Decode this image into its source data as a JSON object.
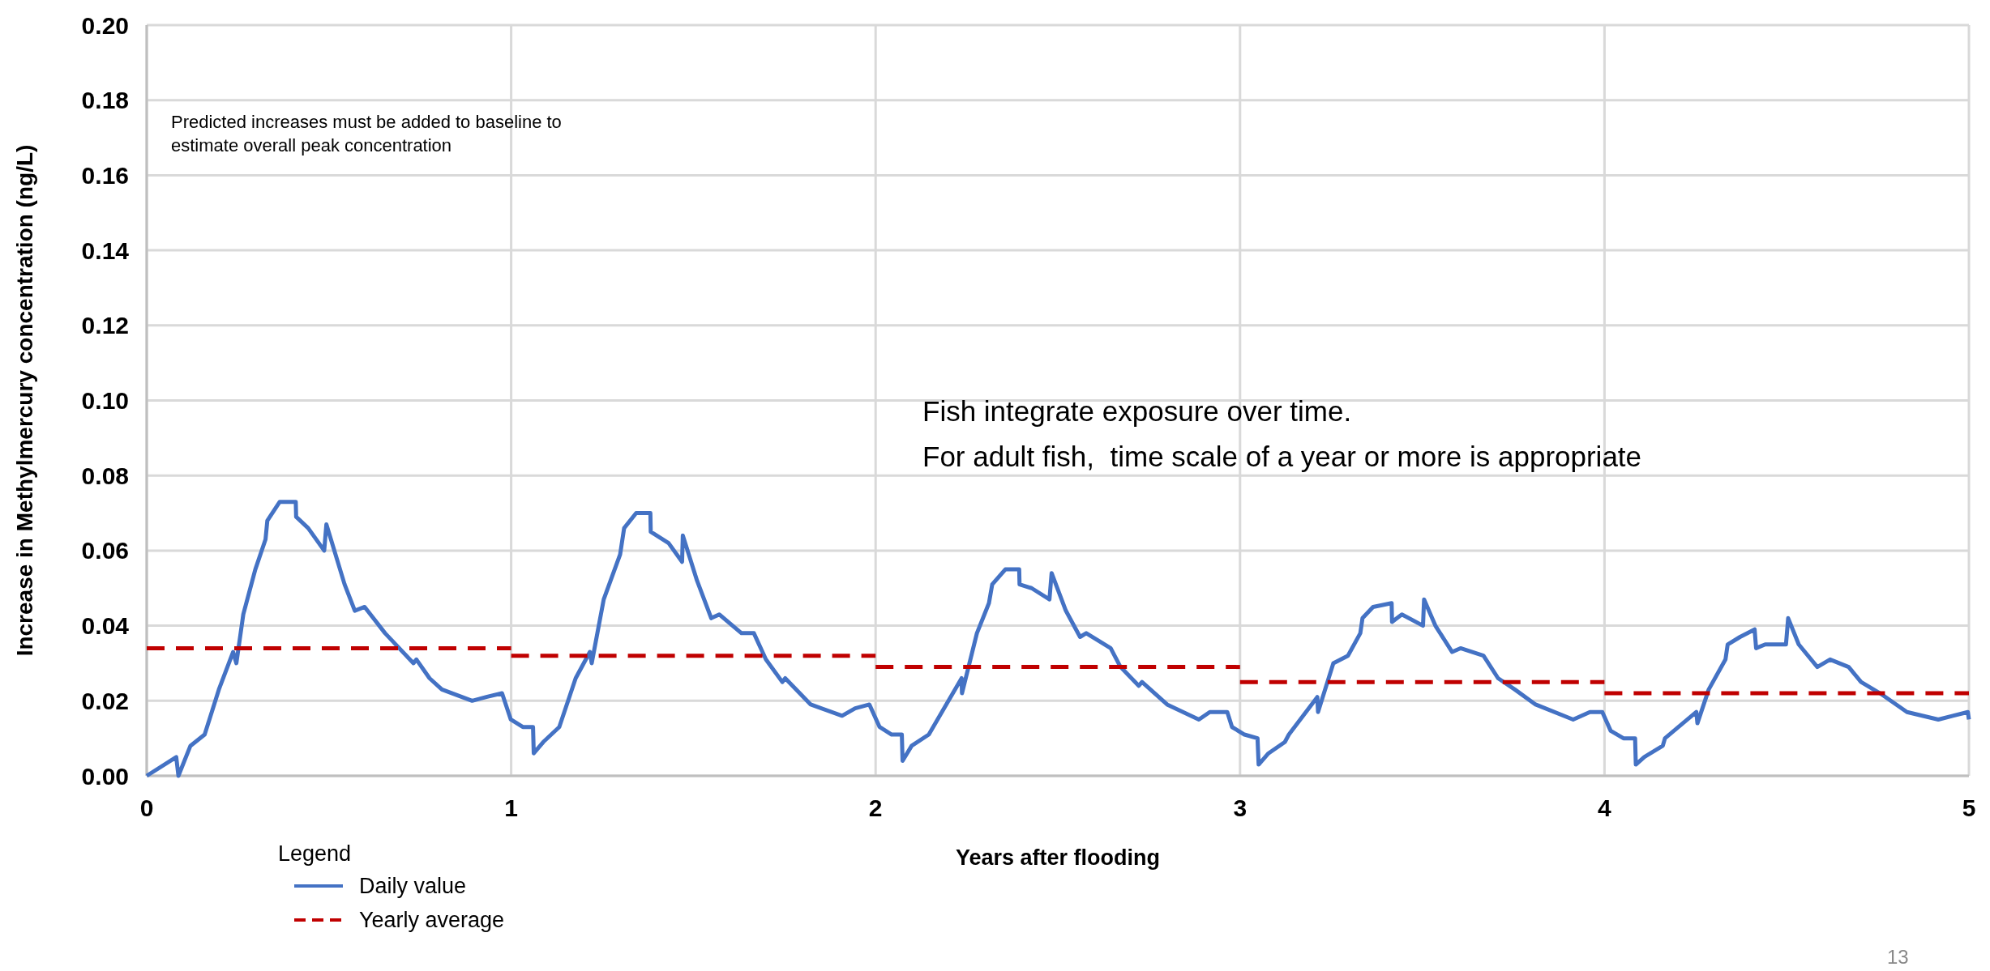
{
  "chart_data": {
    "type": "line",
    "xlabel": "Years after flooding",
    "ylabel": "Increase in Methylmercury concentration (ng/L)",
    "xlim": [
      0,
      5
    ],
    "ylim": [
      0,
      0.2
    ],
    "xticks": [
      0,
      1,
      2,
      3,
      4,
      5
    ],
    "yticks": [
      {
        "value": 0,
        "label": "0.00"
      },
      {
        "value": 0.02,
        "label": "0.02"
      },
      {
        "value": 0.04,
        "label": "0.04"
      },
      {
        "value": 0.06,
        "label": "0.06"
      },
      {
        "value": 0.08,
        "label": "0.08"
      },
      {
        "value": 0.1,
        "label": "0.10"
      },
      {
        "value": 0.12,
        "label": "0.12"
      },
      {
        "value": 0.14,
        "label": "0.14"
      },
      {
        "value": 0.16,
        "label": "0.16"
      },
      {
        "value": 0.18,
        "label": "0.18"
      },
      {
        "value": 0.2,
        "label": "0.20"
      }
    ],
    "grid": true,
    "legend": "bottom left",
    "legend_title": "Legend",
    "marker": "none",
    "annotations": [
      "Predicted increases must be added to baseline to\nestimate overall peak concentration",
      "Fish integrate exposure over time.\nFor adult fish,  time scale of a year or more is appropriate",
      "13"
    ],
    "series": [
      {
        "name": "Daily value",
        "color": "#4472c4",
        "line_style": "solid",
        "x": [
          0,
          0.081,
          0.087,
          0.12,
          0.159,
          0.198,
          0.237,
          0.246,
          0.265,
          0.298,
          0.326,
          0.331,
          0.365,
          0.409,
          0.41,
          0.443,
          0.487,
          0.493,
          0.543,
          0.571,
          0.598,
          0.654,
          0.732,
          0.74,
          0.776,
          0.81,
          0.893,
          0.932,
          0.975,
          0.999,
          1.032,
          1.06,
          1.062,
          1.088,
          1.132,
          1.177,
          1.216,
          1.221,
          1.254,
          1.299,
          1.31,
          1.343,
          1.382,
          1.383,
          1.432,
          1.469,
          1.471,
          1.51,
          1.549,
          1.571,
          1.632,
          1.666,
          1.699,
          1.744,
          1.752,
          1.822,
          1.908,
          1.944,
          1.983,
          2.011,
          2.044,
          2.072,
          2.074,
          2.099,
          2.146,
          2.2,
          2.236,
          2.237,
          2.278,
          2.311,
          2.32,
          2.356,
          2.394,
          2.395,
          2.428,
          2.477,
          2.483,
          2.522,
          2.561,
          2.578,
          2.645,
          2.672,
          2.722,
          2.731,
          2.8,
          2.887,
          2.917,
          2.965,
          2.978,
          3.012,
          3.048,
          3.051,
          3.078,
          3.123,
          3.134,
          3.212,
          3.214,
          3.256,
          3.296,
          3.33,
          3.336,
          3.365,
          3.416,
          3.417,
          3.444,
          3.502,
          3.505,
          3.536,
          3.582,
          3.605,
          3.668,
          3.708,
          3.754,
          3.811,
          3.914,
          3.96,
          3.994,
          4.017,
          4.052,
          4.084,
          4.086,
          4.109,
          4.16,
          4.166,
          4.252,
          4.255,
          4.286,
          4.332,
          4.338,
          4.372,
          4.412,
          4.416,
          4.441,
          4.498,
          4.504,
          4.533,
          4.584,
          4.619,
          4.67,
          4.704,
          4.756,
          4.83,
          4.916,
          4.956,
          4.997,
          5
        ],
        "values": [
          0,
          0.005,
          0,
          0.008,
          0.011,
          0.023,
          0.033,
          0.03,
          0.043,
          0.055,
          0.063,
          0.068,
          0.073,
          0.073,
          0.069,
          0.066,
          0.06,
          0.067,
          0.051,
          0.044,
          0.045,
          0.038,
          0.03,
          0.031,
          0.026,
          0.023,
          0.02,
          0.021,
          0.022,
          0.015,
          0.013,
          0.013,
          0.006,
          0.009,
          0.013,
          0.026,
          0.033,
          0.03,
          0.047,
          0.059,
          0.066,
          0.07,
          0.07,
          0.065,
          0.062,
          0.057,
          0.064,
          0.052,
          0.042,
          0.043,
          0.038,
          0.038,
          0.031,
          0.025,
          0.026,
          0.019,
          0.016,
          0.018,
          0.019,
          0.013,
          0.011,
          0.011,
          0.004,
          0.008,
          0.011,
          0.02,
          0.026,
          0.022,
          0.038,
          0.046,
          0.051,
          0.055,
          0.055,
          0.051,
          0.05,
          0.047,
          0.054,
          0.044,
          0.037,
          0.038,
          0.034,
          0.029,
          0.024,
          0.025,
          0.019,
          0.015,
          0.017,
          0.017,
          0.013,
          0.011,
          0.01,
          0.003,
          0.006,
          0.009,
          0.011,
          0.021,
          0.017,
          0.03,
          0.032,
          0.038,
          0.042,
          0.045,
          0.046,
          0.041,
          0.043,
          0.04,
          0.047,
          0.04,
          0.033,
          0.034,
          0.032,
          0.026,
          0.023,
          0.019,
          0.015,
          0.017,
          0.017,
          0.012,
          0.01,
          0.01,
          0.003,
          0.005,
          0.008,
          0.01,
          0.017,
          0.014,
          0.023,
          0.031,
          0.035,
          0.037,
          0.039,
          0.034,
          0.035,
          0.035,
          0.042,
          0.035,
          0.029,
          0.031,
          0.029,
          0.025,
          0.022,
          0.017,
          0.015,
          0.016,
          0.017,
          0.015
        ]
      },
      {
        "name": "Yearly average",
        "color": "#c00000",
        "line_style": "dashed",
        "x": [
          0,
          1
        ],
        "values": [
          0.034,
          0.034
        ]
      },
      {
        "color": "#c00000",
        "line_style": "dashed",
        "x": [
          1,
          2
        ],
        "values": [
          0.032,
          0.032
        ]
      },
      {
        "color": "#c00000",
        "line_style": "dashed",
        "x": [
          2,
          3
        ],
        "values": [
          0.029,
          0.029
        ]
      },
      {
        "color": "#c00000",
        "line_style": "dashed",
        "x": [
          3,
          4
        ],
        "values": [
          0.025,
          0.025
        ]
      },
      {
        "color": "#c00000",
        "line_style": "dashed",
        "x": [
          4,
          5
        ],
        "values": [
          0.022,
          0.022
        ]
      }
    ]
  }
}
